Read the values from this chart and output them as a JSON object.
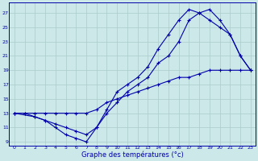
{
  "xlabel": "Graphe des températures (°c)",
  "background_color": "#cde8e8",
  "line_color": "#0000aa",
  "grid_color": "#aacccc",
  "xlim": [
    -0.5,
    23.5
  ],
  "ylim": [
    8.5,
    28.5
  ],
  "xticks": [
    0,
    1,
    2,
    3,
    4,
    5,
    6,
    7,
    8,
    9,
    10,
    11,
    12,
    13,
    14,
    15,
    16,
    17,
    18,
    19,
    20,
    21,
    22,
    23
  ],
  "yticks": [
    9,
    11,
    13,
    15,
    17,
    19,
    21,
    23,
    25,
    27
  ],
  "line1_x": [
    0,
    1,
    2,
    3,
    4,
    5,
    6,
    7,
    8,
    9,
    10,
    11,
    12,
    13,
    14,
    15,
    16,
    17,
    18,
    19,
    20,
    21,
    22,
    23
  ],
  "line1_y": [
    13,
    13,
    12.5,
    12,
    11,
    10,
    9.5,
    9,
    11,
    13.5,
    16,
    17,
    18,
    19.5,
    22,
    24,
    26,
    27.5,
    27,
    26,
    25,
    24,
    21,
    19
  ],
  "line2_x": [
    0,
    2,
    3,
    4,
    5,
    6,
    7,
    8,
    9,
    10,
    11,
    12,
    13,
    14,
    15,
    16,
    17,
    18,
    19,
    20,
    21,
    22,
    23
  ],
  "line2_y": [
    13,
    12.5,
    12,
    11.5,
    11,
    10.5,
    10,
    11,
    13,
    14.5,
    16,
    17,
    18,
    20,
    21,
    23,
    26,
    27,
    27.5,
    26,
    24,
    21,
    19
  ],
  "line3_x": [
    0,
    1,
    2,
    3,
    4,
    5,
    6,
    7,
    8,
    9,
    10,
    11,
    12,
    13,
    14,
    15,
    16,
    17,
    18,
    19,
    20,
    21,
    22,
    23
  ],
  "line3_y": [
    13,
    13,
    13,
    13,
    13,
    13,
    13,
    13,
    13.5,
    14.5,
    15,
    15.5,
    16,
    16.5,
    17,
    17.5,
    18,
    18,
    18.5,
    19,
    19,
    19,
    19,
    19
  ]
}
